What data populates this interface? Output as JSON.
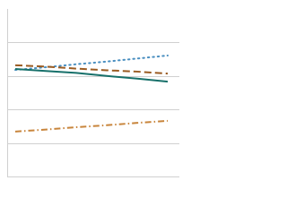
{
  "chart_data": {
    "type": "line",
    "categories": [
      null,
      null,
      null,
      null,
      null,
      null
    ],
    "ylim": [
      0,
      50
    ],
    "yticks": [
      10,
      20,
      30,
      40
    ],
    "grid": true,
    "series": [
      {
        "color": "#4a8fc0",
        "style": "dotted",
        "values": [
          31.8,
          32.6,
          33.5,
          34.3,
          35.2,
          36.1
        ]
      },
      {
        "color": "#9a5b22",
        "style": "dashed",
        "values": [
          33.2,
          32.8,
          32.2,
          31.7,
          31.3,
          30.7
        ]
      },
      {
        "color": "#17706a",
        "style": "solid",
        "values": [
          32.1,
          31.5,
          30.9,
          30.0,
          29.2,
          28.3
        ]
      },
      {
        "color": "#c8853c",
        "style": "dashdot",
        "values": [
          13.4,
          14.0,
          14.7,
          15.3,
          16.0,
          16.6
        ]
      }
    ]
  }
}
